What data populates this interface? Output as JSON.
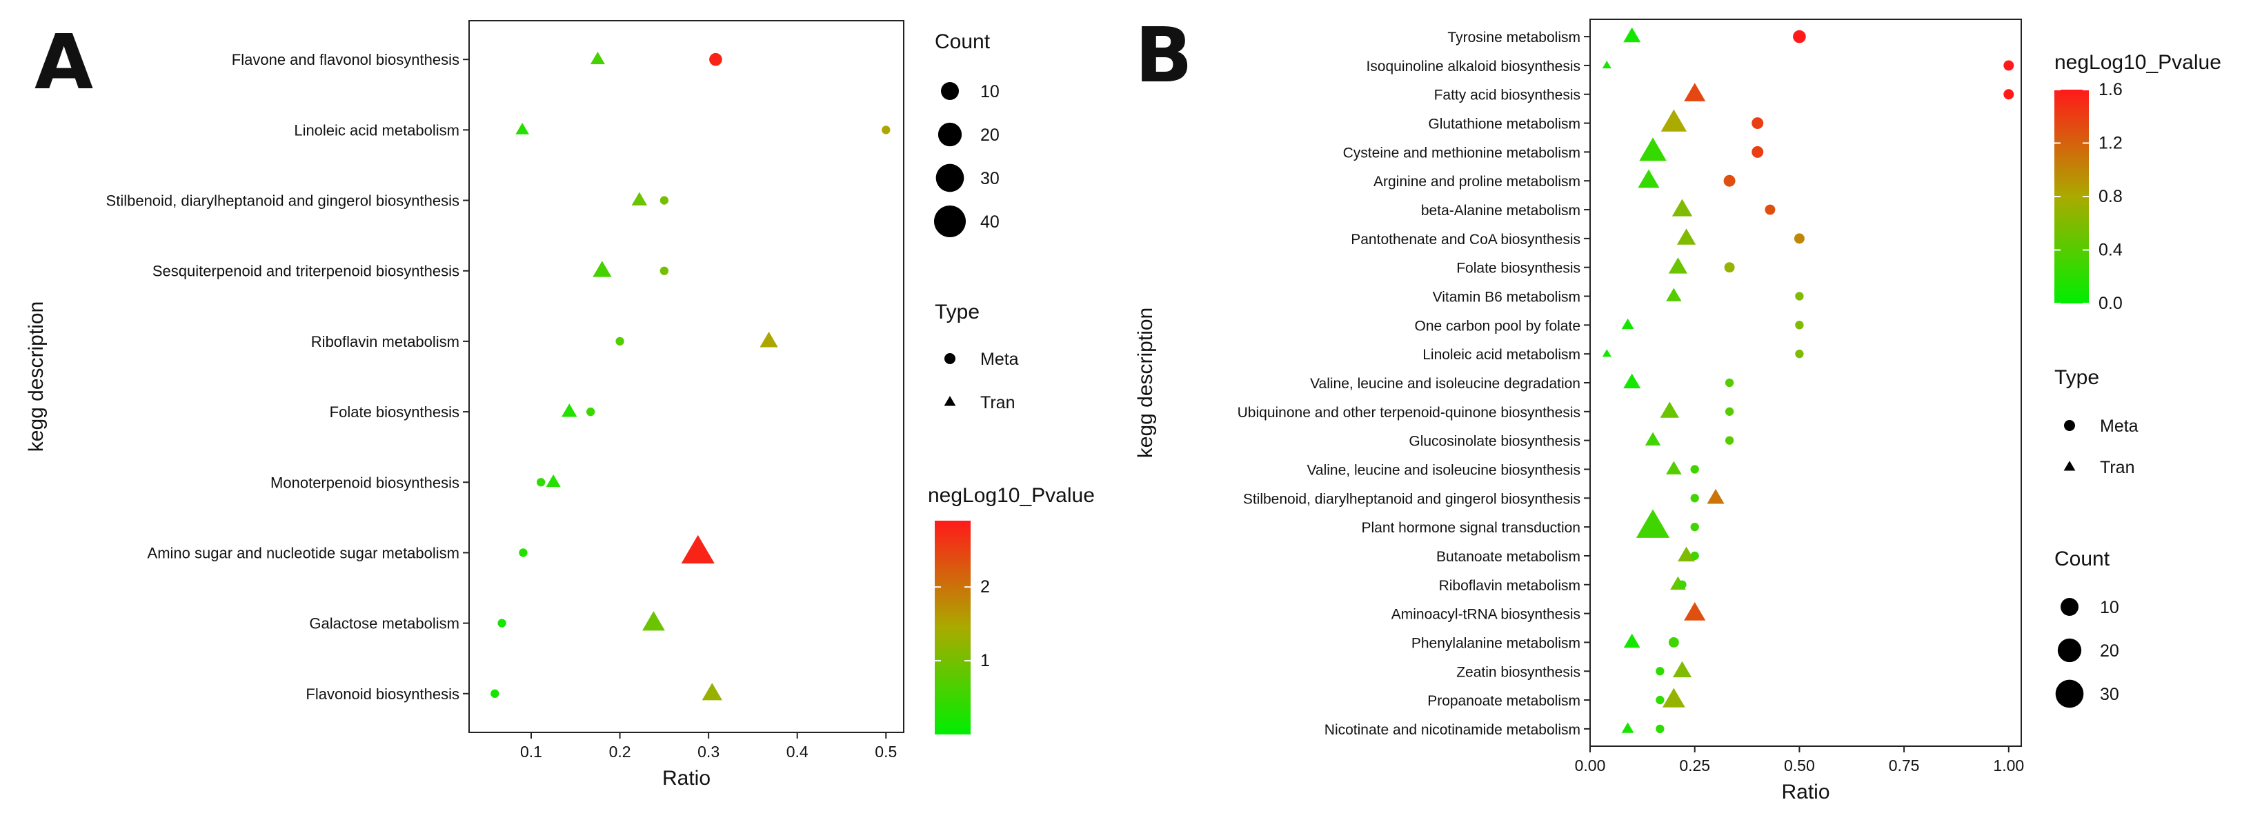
{
  "chart_data": [
    {
      "panel_label": "A",
      "type": "scatter",
      "xlabel": "Ratio",
      "ylabel": "kegg description",
      "xlim": [
        0.03,
        0.52
      ],
      "xticks": [
        0.1,
        0.2,
        0.3,
        0.4,
        0.5
      ],
      "xtick_labels": [
        "0.1",
        "0.2",
        "0.3",
        "0.4",
        "0.5"
      ],
      "grid": false,
      "categories": [
        "Flavone and flavonol biosynthesis",
        "Linoleic acid metabolism",
        "Stilbenoid, diarylheptanoid and gingerol biosynthesis",
        "Sesquiterpenoid and triterpenoid biosynthesis",
        "Riboflavin metabolism",
        "Folate biosynthesis",
        "Monoterpenoid biosynthesis",
        "Amino sugar and nucleotide sugar metabolism",
        "Galactose metabolism",
        "Flavonoid biosynthesis"
      ],
      "points": [
        {
          "category": "Flavone and flavonol biosynthesis",
          "type": "Tran",
          "ratio": 0.175,
          "count": 5,
          "negLog10_Pvalue": 0.6
        },
        {
          "category": "Flavone and flavonol biosynthesis",
          "type": "Meta",
          "ratio": 0.308,
          "count": 4,
          "negLog10_Pvalue": 2.8
        },
        {
          "category": "Linoleic acid metabolism",
          "type": "Tran",
          "ratio": 0.09,
          "count": 4,
          "negLog10_Pvalue": 0.3
        },
        {
          "category": "Linoleic acid metabolism",
          "type": "Meta",
          "ratio": 0.5,
          "count": 1,
          "negLog10_Pvalue": 1.5
        },
        {
          "category": "Stilbenoid, diarylheptanoid and gingerol biosynthesis",
          "type": "Tran",
          "ratio": 0.222,
          "count": 6,
          "negLog10_Pvalue": 0.9
        },
        {
          "category": "Stilbenoid, diarylheptanoid and gingerol biosynthesis",
          "type": "Meta",
          "ratio": 0.25,
          "count": 1,
          "negLog10_Pvalue": 1.0
        },
        {
          "category": "Sesquiterpenoid and triterpenoid biosynthesis",
          "type": "Tran",
          "ratio": 0.18,
          "count": 10,
          "negLog10_Pvalue": 0.6
        },
        {
          "category": "Sesquiterpenoid and triterpenoid biosynthesis",
          "type": "Meta",
          "ratio": 0.25,
          "count": 1,
          "negLog10_Pvalue": 1.0
        },
        {
          "category": "Riboflavin metabolism",
          "type": "Tran",
          "ratio": 0.368,
          "count": 9,
          "negLog10_Pvalue": 1.5
        },
        {
          "category": "Riboflavin metabolism",
          "type": "Meta",
          "ratio": 0.2,
          "count": 1,
          "negLog10_Pvalue": 0.7
        },
        {
          "category": "Folate biosynthesis",
          "type": "Tran",
          "ratio": 0.143,
          "count": 6,
          "negLog10_Pvalue": 0.3
        },
        {
          "category": "Folate biosynthesis",
          "type": "Meta",
          "ratio": 0.167,
          "count": 1,
          "negLog10_Pvalue": 0.5
        },
        {
          "category": "Monoterpenoid biosynthesis",
          "type": "Tran",
          "ratio": 0.125,
          "count": 5,
          "negLog10_Pvalue": 0.3
        },
        {
          "category": "Monoterpenoid biosynthesis",
          "type": "Meta",
          "ratio": 0.111,
          "count": 1,
          "negLog10_Pvalue": 0.4
        },
        {
          "category": "Amino sugar and nucleotide sugar metabolism",
          "type": "Tran",
          "ratio": 0.288,
          "count": 40,
          "negLog10_Pvalue": 2.8
        },
        {
          "category": "Amino sugar and nucleotide sugar metabolism",
          "type": "Meta",
          "ratio": 0.091,
          "count": 1,
          "negLog10_Pvalue": 0.3
        },
        {
          "category": "Galactose metabolism",
          "type": "Tran",
          "ratio": 0.238,
          "count": 16,
          "negLog10_Pvalue": 0.9
        },
        {
          "category": "Galactose metabolism",
          "type": "Meta",
          "ratio": 0.067,
          "count": 1,
          "negLog10_Pvalue": 0.2
        },
        {
          "category": "Flavonoid biosynthesis",
          "type": "Tran",
          "ratio": 0.304,
          "count": 12,
          "negLog10_Pvalue": 1.3
        },
        {
          "category": "Flavonoid biosynthesis",
          "type": "Meta",
          "ratio": 0.059,
          "count": 1,
          "negLog10_Pvalue": 0.2
        }
      ],
      "legend": {
        "count_title": "Count",
        "count_values": [
          10,
          20,
          30,
          40
        ],
        "type_title": "Type",
        "type_items": [
          "Meta",
          "Tran"
        ],
        "color_title": "negLog10_Pvalue",
        "color_range": [
          0,
          2.9
        ],
        "color_ticks": [
          1,
          2
        ],
        "color_low": "#00ee00",
        "color_mid": "#aaaa00",
        "color_high": "#ff1a1a"
      }
    },
    {
      "panel_label": "B",
      "type": "scatter",
      "xlabel": "Ratio",
      "ylabel": "kegg description",
      "xlim": [
        0,
        1.03
      ],
      "xticks": [
        0,
        0.25,
        0.5,
        0.75,
        1.0
      ],
      "xtick_labels": [
        "0.00",
        "0.25",
        "0.50",
        "0.75",
        "1.00"
      ],
      "grid": false,
      "categories": [
        "Tyrosine metabolism",
        "Isoquinoline alkaloid biosynthesis",
        "Fatty acid biosynthesis",
        "Glutathione metabolism",
        "Cysteine and methionine metabolism",
        "Arginine and proline metabolism",
        "beta-Alanine metabolism",
        "Pantothenate and CoA biosynthesis",
        "Folate biosynthesis",
        "Vitamin B6 metabolism",
        "One carbon pool by folate",
        "Linoleic acid metabolism",
        "Valine, leucine and isoleucine degradation",
        "Ubiquinone and other terpenoid-quinone biosynthesis",
        "Glucosinolate biosynthesis",
        "Valine, leucine and isoleucine biosynthesis",
        "Stilbenoid, diarylheptanoid and gingerol biosynthesis",
        "Plant hormone signal transduction",
        "Butanoate metabolism",
        "Riboflavin metabolism",
        "Aminoacyl-tRNA biosynthesis",
        "Phenylalanine metabolism",
        "Zeatin biosynthesis",
        "Propanoate metabolism",
        "Nicotinate and nicotinamide metabolism"
      ],
      "points": [
        {
          "category": "Tyrosine metabolism",
          "type": "Tran",
          "ratio": 0.1,
          "count": 8,
          "negLog10_Pvalue": 0.1
        },
        {
          "category": "Tyrosine metabolism",
          "type": "Meta",
          "ratio": 0.5,
          "count": 4,
          "negLog10_Pvalue": 1.6
        },
        {
          "category": "Isoquinoline alkaloid biosynthesis",
          "type": "Tran",
          "ratio": 0.04,
          "count": 1,
          "negLog10_Pvalue": 0.1
        },
        {
          "category": "Isoquinoline alkaloid biosynthesis",
          "type": "Meta",
          "ratio": 1.0,
          "count": 2,
          "negLog10_Pvalue": 1.6
        },
        {
          "category": "Fatty acid biosynthesis",
          "type": "Tran",
          "ratio": 0.25,
          "count": 14,
          "negLog10_Pvalue": 1.35
        },
        {
          "category": "Fatty acid biosynthesis",
          "type": "Meta",
          "ratio": 1.0,
          "count": 2,
          "negLog10_Pvalue": 1.6
        },
        {
          "category": "Glutathione metabolism",
          "type": "Tran",
          "ratio": 0.2,
          "count": 22,
          "negLog10_Pvalue": 0.8
        },
        {
          "category": "Glutathione metabolism",
          "type": "Meta",
          "ratio": 0.4,
          "count": 3,
          "negLog10_Pvalue": 1.4
        },
        {
          "category": "Cysteine and methionine metabolism",
          "type": "Tran",
          "ratio": 0.15,
          "count": 25,
          "negLog10_Pvalue": 0.25
        },
        {
          "category": "Cysteine and methionine metabolism",
          "type": "Meta",
          "ratio": 0.4,
          "count": 3,
          "negLog10_Pvalue": 1.4
        },
        {
          "category": "Arginine and proline metabolism",
          "type": "Tran",
          "ratio": 0.14,
          "count": 14,
          "negLog10_Pvalue": 0.25
        },
        {
          "category": "Arginine and proline metabolism",
          "type": "Meta",
          "ratio": 0.333,
          "count": 3,
          "negLog10_Pvalue": 1.3
        },
        {
          "category": "beta-Alanine metabolism",
          "type": "Tran",
          "ratio": 0.22,
          "count": 12,
          "negLog10_Pvalue": 0.6
        },
        {
          "category": "beta-Alanine metabolism",
          "type": "Meta",
          "ratio": 0.43,
          "count": 2,
          "negLog10_Pvalue": 1.3
        },
        {
          "category": "Pantothenate and CoA biosynthesis",
          "type": "Tran",
          "ratio": 0.23,
          "count": 10,
          "negLog10_Pvalue": 0.6
        },
        {
          "category": "Pantothenate and CoA biosynthesis",
          "type": "Meta",
          "ratio": 0.5,
          "count": 2,
          "negLog10_Pvalue": 1.0
        },
        {
          "category": "Folate biosynthesis",
          "type": "Tran",
          "ratio": 0.21,
          "count": 10,
          "negLog10_Pvalue": 0.5
        },
        {
          "category": "Folate biosynthesis",
          "type": "Meta",
          "ratio": 0.333,
          "count": 2,
          "negLog10_Pvalue": 0.7
        },
        {
          "category": "Vitamin B6 metabolism",
          "type": "Tran",
          "ratio": 0.2,
          "count": 6,
          "negLog10_Pvalue": 0.4
        },
        {
          "category": "Vitamin B6 metabolism",
          "type": "Meta",
          "ratio": 0.5,
          "count": 1,
          "negLog10_Pvalue": 0.6
        },
        {
          "category": "One carbon pool by folate",
          "type": "Tran",
          "ratio": 0.09,
          "count": 3,
          "negLog10_Pvalue": 0.1
        },
        {
          "category": "One carbon pool by folate",
          "type": "Meta",
          "ratio": 0.5,
          "count": 1,
          "negLog10_Pvalue": 0.6
        },
        {
          "category": "Linoleic acid metabolism",
          "type": "Tran",
          "ratio": 0.04,
          "count": 1,
          "negLog10_Pvalue": 0.1
        },
        {
          "category": "Linoleic acid metabolism",
          "type": "Meta",
          "ratio": 0.5,
          "count": 1,
          "negLog10_Pvalue": 0.6
        },
        {
          "category": "Valine, leucine and isoleucine degradation",
          "type": "Tran",
          "ratio": 0.1,
          "count": 8,
          "negLog10_Pvalue": 0.1
        },
        {
          "category": "Valine, leucine and isoleucine degradation",
          "type": "Meta",
          "ratio": 0.333,
          "count": 1,
          "negLog10_Pvalue": 0.4
        },
        {
          "category": "Ubiquinone and other terpenoid-quinone biosynthesis",
          "type": "Tran",
          "ratio": 0.19,
          "count": 10,
          "negLog10_Pvalue": 0.5
        },
        {
          "category": "Ubiquinone and other terpenoid-quinone biosynthesis",
          "type": "Meta",
          "ratio": 0.333,
          "count": 1,
          "negLog10_Pvalue": 0.4
        },
        {
          "category": "Glucosinolate biosynthesis",
          "type": "Tran",
          "ratio": 0.15,
          "count": 6,
          "negLog10_Pvalue": 0.3
        },
        {
          "category": "Glucosinolate biosynthesis",
          "type": "Meta",
          "ratio": 0.333,
          "count": 1,
          "negLog10_Pvalue": 0.4
        },
        {
          "category": "Valine, leucine and isoleucine biosynthesis",
          "type": "Tran",
          "ratio": 0.2,
          "count": 6,
          "negLog10_Pvalue": 0.4
        },
        {
          "category": "Valine, leucine and isoleucine biosynthesis",
          "type": "Meta",
          "ratio": 0.25,
          "count": 1,
          "negLog10_Pvalue": 0.3
        },
        {
          "category": "Stilbenoid, diarylheptanoid and gingerol biosynthesis",
          "type": "Tran",
          "ratio": 0.3,
          "count": 8,
          "negLog10_Pvalue": 1.1
        },
        {
          "category": "Stilbenoid, diarylheptanoid and gingerol biosynthesis",
          "type": "Meta",
          "ratio": 0.25,
          "count": 1,
          "negLog10_Pvalue": 0.3
        },
        {
          "category": "Plant hormone signal transduction",
          "type": "Tran",
          "ratio": 0.15,
          "count": 40,
          "negLog10_Pvalue": 0.3
        },
        {
          "category": "Plant hormone signal transduction",
          "type": "Meta",
          "ratio": 0.25,
          "count": 1,
          "negLog10_Pvalue": 0.3
        },
        {
          "category": "Butanoate metabolism",
          "type": "Tran",
          "ratio": 0.23,
          "count": 8,
          "negLog10_Pvalue": 0.6
        },
        {
          "category": "Butanoate metabolism",
          "type": "Meta",
          "ratio": 0.25,
          "count": 1,
          "negLog10_Pvalue": 0.3
        },
        {
          "category": "Riboflavin metabolism",
          "type": "Tran",
          "ratio": 0.21,
          "count": 6,
          "negLog10_Pvalue": 0.5
        },
        {
          "category": "Riboflavin metabolism",
          "type": "Meta",
          "ratio": 0.22,
          "count": 1,
          "negLog10_Pvalue": 0.3
        },
        {
          "category": "Aminoacyl-tRNA biosynthesis",
          "type": "Tran",
          "ratio": 0.25,
          "count": 14,
          "negLog10_Pvalue": 1.3
        },
        {
          "category": "Phenylalanine metabolism",
          "type": "Tran",
          "ratio": 0.1,
          "count": 7,
          "negLog10_Pvalue": 0.1
        },
        {
          "category": "Phenylalanine metabolism",
          "type": "Meta",
          "ratio": 0.2,
          "count": 2,
          "negLog10_Pvalue": 0.3
        },
        {
          "category": "Zeatin biosynthesis",
          "type": "Tran",
          "ratio": 0.22,
          "count": 10,
          "negLog10_Pvalue": 0.6
        },
        {
          "category": "Zeatin biosynthesis",
          "type": "Meta",
          "ratio": 0.167,
          "count": 1,
          "negLog10_Pvalue": 0.2
        },
        {
          "category": "Propanoate metabolism",
          "type": "Tran",
          "ratio": 0.2,
          "count": 16,
          "negLog10_Pvalue": 0.7
        },
        {
          "category": "Propanoate metabolism",
          "type": "Meta",
          "ratio": 0.167,
          "count": 1,
          "negLog10_Pvalue": 0.2
        },
        {
          "category": "Nicotinate and nicotinamide metabolism",
          "type": "Tran",
          "ratio": 0.09,
          "count": 3,
          "negLog10_Pvalue": 0.1
        },
        {
          "category": "Nicotinate and nicotinamide metabolism",
          "type": "Meta",
          "ratio": 0.167,
          "count": 1,
          "negLog10_Pvalue": 0.2
        }
      ],
      "legend": {
        "color_title": "negLog10_Pvalue",
        "color_range": [
          0,
          1.6
        ],
        "color_ticks": [
          0,
          0.4,
          0.8,
          1.2,
          1.6
        ],
        "color_tick_labels": [
          "0.0",
          "0.4",
          "0.8",
          "1.2",
          "1.6"
        ],
        "color_low": "#00ee00",
        "color_mid": "#aaaa00",
        "color_high": "#ff1a1a",
        "type_title": "Type",
        "type_items": [
          "Meta",
          "Tran"
        ],
        "count_title": "Count",
        "count_values": [
          10,
          20,
          30
        ]
      }
    }
  ]
}
